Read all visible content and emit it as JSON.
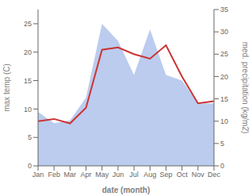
{
  "chart_data": {
    "type": "line",
    "categories": [
      "Jan",
      "Feb",
      "Mar",
      "Apr",
      "May",
      "Jun",
      "Jul",
      "Aug",
      "Sep",
      "Oct",
      "Nov",
      "Dec"
    ],
    "xlabel": "date (month)",
    "ylabel": "max temp (C)",
    "y2label": "med. precipitation (kg/m2)",
    "ylim": [
      0,
      27.5
    ],
    "yticks": [
      0,
      5,
      10,
      15,
      20,
      25
    ],
    "y2lim": [
      0,
      35
    ],
    "y2ticks": [
      0,
      5,
      10,
      15,
      20,
      25,
      30,
      35
    ],
    "series": [
      {
        "type": "area",
        "color": "#bbccee",
        "values": [
          9.5,
          7.5,
          8.0,
          12.0,
          25.0,
          22.0,
          16.0,
          24.0,
          16.0,
          15.0,
          11.0,
          11.0
        ]
      },
      {
        "type": "line",
        "color": "#cc3333",
        "axis": "y2",
        "values": [
          10.0,
          10.5,
          9.5,
          13.0,
          26.0,
          26.5,
          25.0,
          24.0,
          27.0,
          20.0,
          14.0,
          14.5
        ]
      }
    ]
  }
}
